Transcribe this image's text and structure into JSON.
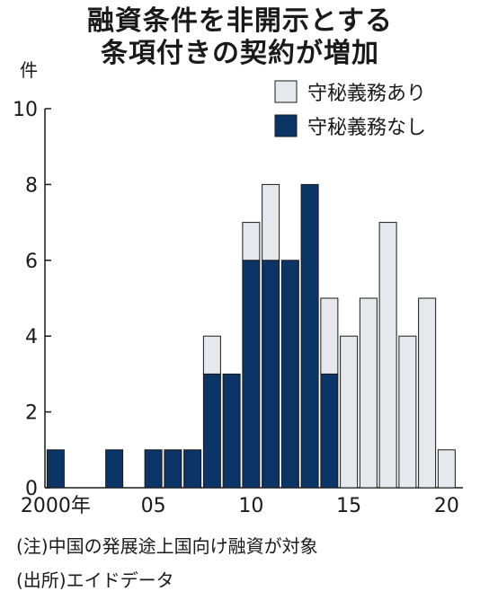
{
  "chart_data": {
    "type": "bar",
    "stacked": true,
    "title_line1": "融資条件を非開示とする",
    "title_line2": "条項付きの契約が増加",
    "unit_label": "件",
    "ylim": [
      0,
      10
    ],
    "y_ticks": [
      0,
      2,
      4,
      6,
      8,
      10
    ],
    "x_tick_labels": [
      {
        "year": 2000,
        "label": "2000年"
      },
      {
        "year": 2005,
        "label": "05"
      },
      {
        "year": 2010,
        "label": "10"
      },
      {
        "year": 2015,
        "label": "15"
      },
      {
        "year": 2020,
        "label": "20"
      }
    ],
    "years": [
      2000,
      2001,
      2002,
      2003,
      2004,
      2005,
      2006,
      2007,
      2008,
      2009,
      2010,
      2011,
      2012,
      2013,
      2014,
      2015,
      2016,
      2017,
      2018,
      2019,
      2020
    ],
    "series": [
      {
        "name": "守秘義務なし",
        "color": "#0b3467",
        "values": [
          1,
          0,
          0,
          1,
          0,
          1,
          1,
          1,
          3,
          3,
          6,
          6,
          6,
          8,
          3,
          0,
          0,
          0,
          0,
          0,
          0
        ]
      },
      {
        "name": "守秘義務あり",
        "color": "#e6e8ee",
        "values": [
          0,
          0,
          0,
          0,
          0,
          0,
          0,
          0,
          1,
          0,
          1,
          2,
          0,
          0,
          2,
          4,
          5,
          7,
          4,
          5,
          1
        ]
      }
    ],
    "legend_order": [
      "守秘義務あり",
      "守秘義務なし"
    ],
    "legend_position": "top-right"
  },
  "notes": {
    "note1": "(注)中国の発展途上国向け融資が対象",
    "source": "(出所)エイドデータ"
  }
}
